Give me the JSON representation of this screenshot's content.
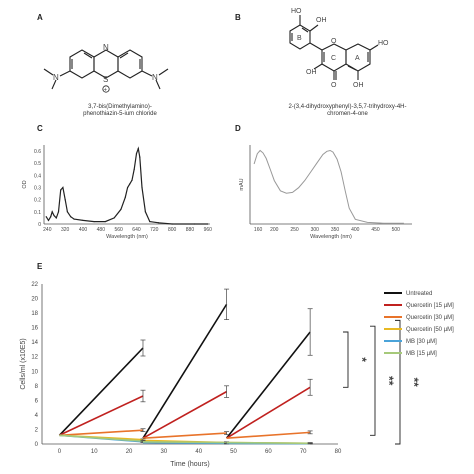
{
  "panels": {
    "a": {
      "letter": "A",
      "caption_line1": "3,7-bis(Dimethylamino)-",
      "caption_line2": "phenothiazin-5-ium chloride",
      "atoms": {
        "n_top": "N",
        "s_center": "S",
        "n_left": "N",
        "n_right": "N",
        "charge": "+"
      }
    },
    "b": {
      "letter": "B",
      "caption_line1": "2-(3,4-dihydroxyphenyl)-3,5,7-trihydroxy-4H-",
      "caption_line2": "chromen-4-one",
      "atoms": {
        "oh1": "HO",
        "oh2": "OH",
        "oh3": "OH",
        "oh4": "HO",
        "oh5": "OH",
        "o_ring": "O",
        "o_keto": "O"
      },
      "ring_labels": {
        "b": "B",
        "c": "C",
        "a": "A"
      }
    },
    "c": {
      "letter": "C"
    },
    "d": {
      "letter": "D"
    },
    "e": {
      "letter": "E"
    }
  },
  "chart_data": [
    {
      "panel": "C",
      "type": "line",
      "xlabel": "Wavelength (nm)",
      "ylabel": "OD",
      "xlim": [
        225,
        970
      ],
      "ylim": [
        0,
        0.65
      ],
      "xticks": [
        "240",
        "320",
        "400",
        "480",
        "560",
        "640",
        "720",
        "800",
        "880",
        "960"
      ],
      "yticks": [
        "0",
        "0.1",
        "0.2",
        "0.3",
        "0.4",
        "0.5",
        "0.6"
      ],
      "series": [
        {
          "x": [
            235,
            245,
            255,
            262,
            270,
            280,
            290,
            300,
            310,
            320,
            330,
            345,
            360,
            400,
            450,
            500,
            540,
            570,
            590,
            600,
            610,
            620,
            630,
            640,
            648,
            655,
            665,
            680,
            700,
            740,
            800,
            900,
            960
          ],
          "y": [
            0.06,
            0.03,
            0.06,
            0.1,
            0.07,
            0.05,
            0.1,
            0.28,
            0.3,
            0.2,
            0.1,
            0.06,
            0.04,
            0.03,
            0.02,
            0.02,
            0.05,
            0.12,
            0.22,
            0.3,
            0.33,
            0.36,
            0.45,
            0.58,
            0.62,
            0.55,
            0.3,
            0.1,
            0.02,
            0.01,
            0.0,
            0.0,
            0.0
          ]
        }
      ]
    },
    {
      "panel": "D",
      "type": "line",
      "xlabel": "Wavelength (nm)",
      "ylabel": "mAU",
      "xlim": [
        140,
        540
      ],
      "ylim": [
        0,
        1
      ],
      "xticks": [
        "160",
        "200",
        "250",
        "300",
        "350",
        "400",
        "450",
        "500"
      ],
      "series": [
        {
          "x": [
            150,
            158,
            165,
            172,
            180,
            190,
            200,
            215,
            230,
            245,
            260,
            275,
            290,
            305,
            320,
            330,
            338,
            345,
            355,
            365,
            375,
            385,
            400,
            430,
            470,
            520
          ],
          "y": [
            0.76,
            0.89,
            0.93,
            0.9,
            0.83,
            0.69,
            0.55,
            0.42,
            0.39,
            0.4,
            0.46,
            0.55,
            0.66,
            0.77,
            0.88,
            0.92,
            0.93,
            0.91,
            0.82,
            0.66,
            0.42,
            0.2,
            0.06,
            0.02,
            0.01,
            0.01
          ]
        }
      ]
    },
    {
      "panel": "E",
      "type": "line",
      "xlabel": "Time (hours)",
      "ylabel": "Cells/ml (x10E5)",
      "xlim": [
        -5,
        80
      ],
      "ylim": [
        0,
        22
      ],
      "xticks": [
        "0",
        "10",
        "20",
        "30",
        "40",
        "50",
        "60",
        "70",
        "80"
      ],
      "yticks": [
        "0",
        "2",
        "4",
        "6",
        "8",
        "10",
        "12",
        "14",
        "16",
        "18",
        "20",
        "22"
      ],
      "series": [
        {
          "name": "Untreated",
          "color": "#111111",
          "segments": [
            [
              [
                0,
                1.2
              ],
              [
                24,
                13.2
              ]
            ],
            [
              [
                24,
                0.8
              ],
              [
                48,
                19.2
              ]
            ],
            [
              [
                48,
                0.8
              ],
              [
                72,
                15.4
              ]
            ]
          ],
          "errors": [
            1.1,
            2.1,
            3.2
          ]
        },
        {
          "name": "Quercetin [15 µM]",
          "color": "#c0211f",
          "segments": [
            [
              [
                0,
                1.2
              ],
              [
                24,
                6.6
              ]
            ],
            [
              [
                24,
                0.8
              ],
              [
                48,
                7.2
              ]
            ],
            [
              [
                48,
                0.8
              ],
              [
                72,
                7.8
              ]
            ]
          ],
          "errors": [
            0.8,
            0.8,
            1.1
          ]
        },
        {
          "name": "Quercetin [30 µM]",
          "color": "#e8732a",
          "segments": [
            [
              [
                0,
                1.2
              ],
              [
                24,
                1.9
              ]
            ],
            [
              [
                24,
                0.8
              ],
              [
                48,
                1.5
              ]
            ],
            [
              [
                48,
                0.8
              ],
              [
                72,
                1.6
              ]
            ]
          ],
          "errors": [
            0.2,
            0.2,
            0.2
          ]
        },
        {
          "name": "Quercetin [50 µM]",
          "color": "#e8b923",
          "segments": [
            [
              [
                0,
                1.2
              ],
              [
                24,
                0.6
              ]
            ],
            [
              [
                24,
                0.5
              ],
              [
                48,
                0.2
              ]
            ],
            [
              [
                48,
                0.2
              ],
              [
                72,
                0.1
              ]
            ]
          ],
          "errors": [
            0.1,
            0.1,
            0.1
          ]
        },
        {
          "name": "MB [30 µM]",
          "color": "#4aa3d9",
          "segments": [
            [
              [
                0,
                1.2
              ],
              [
                24,
                0.3
              ]
            ],
            [
              [
                24,
                0.2
              ],
              [
                48,
                0.1
              ]
            ],
            [
              [
                48,
                0.1
              ],
              [
                72,
                0.05
              ]
            ]
          ],
          "errors": [
            0.1,
            0.1,
            0.05
          ]
        },
        {
          "name": "MB [15 µM]",
          "color": "#a6c97a",
          "segments": [
            [
              [
                0,
                1.2
              ],
              [
                24,
                0.4
              ]
            ],
            [
              [
                24,
                0.3
              ],
              [
                48,
                0.2
              ]
            ],
            [
              [
                48,
                0.2
              ],
              [
                72,
                0.1
              ]
            ]
          ],
          "errors": [
            0.1,
            0.1,
            0.05
          ]
        }
      ],
      "annotations": [
        "*",
        "**",
        "**"
      ]
    }
  ]
}
